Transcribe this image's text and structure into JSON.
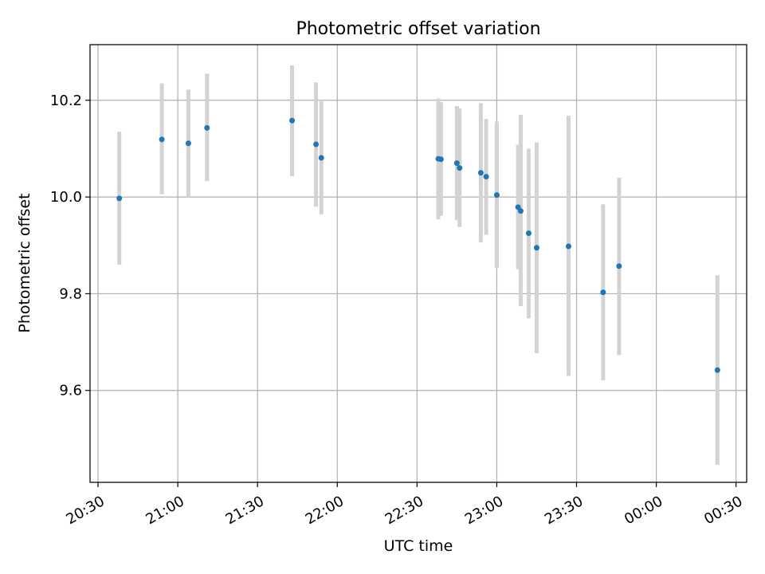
{
  "chart_data": {
    "type": "scatter",
    "title": "Photometric offset variation",
    "xlabel": "UTC time",
    "ylabel": "Photometric offset",
    "grid": true,
    "xlim": [
      "20:27",
      "00:34"
    ],
    "ylim": [
      9.41,
      10.315
    ],
    "x_ticks": [
      "20:30",
      "21:00",
      "21:30",
      "22:00",
      "22:30",
      "23:00",
      "23:30",
      "00:00",
      "00:30"
    ],
    "y_ticks": [
      "9.6",
      "9.8",
      "10.0",
      "10.2"
    ],
    "colors": {
      "point": "#1f77b4",
      "errorbar": "#d3d3d3",
      "grid": "#b0b0b0"
    },
    "points": [
      {
        "x": "20:38",
        "y": 9.997,
        "ylow": 9.86,
        "yhigh": 10.135
      },
      {
        "x": "20:54",
        "y": 10.119,
        "ylow": 10.006,
        "yhigh": 10.235
      },
      {
        "x": "21:04",
        "y": 10.111,
        "ylow": 10.0,
        "yhigh": 10.222
      },
      {
        "x": "21:11",
        "y": 10.143,
        "ylow": 10.033,
        "yhigh": 10.255
      },
      {
        "x": "21:43",
        "y": 10.158,
        "ylow": 10.043,
        "yhigh": 10.272
      },
      {
        "x": "21:52",
        "y": 10.109,
        "ylow": 9.98,
        "yhigh": 10.237
      },
      {
        "x": "21:54",
        "y": 10.081,
        "ylow": 9.964,
        "yhigh": 10.198
      },
      {
        "x": "22:38",
        "y": 10.079,
        "ylow": 9.954,
        "yhigh": 10.204
      },
      {
        "x": "22:39",
        "y": 10.078,
        "ylow": 9.961,
        "yhigh": 10.196
      },
      {
        "x": "22:45",
        "y": 10.07,
        "ylow": 9.952,
        "yhigh": 10.188
      },
      {
        "x": "22:46",
        "y": 10.06,
        "ylow": 9.938,
        "yhigh": 10.183
      },
      {
        "x": "22:54",
        "y": 10.05,
        "ylow": 9.906,
        "yhigh": 10.194
      },
      {
        "x": "22:56",
        "y": 10.042,
        "ylow": 9.922,
        "yhigh": 10.161
      },
      {
        "x": "23:00",
        "y": 10.004,
        "ylow": 9.853,
        "yhigh": 10.156
      },
      {
        "x": "23:08",
        "y": 9.979,
        "ylow": 9.851,
        "yhigh": 10.108
      },
      {
        "x": "23:09",
        "y": 9.971,
        "ylow": 9.774,
        "yhigh": 10.17
      },
      {
        "x": "23:12",
        "y": 9.925,
        "ylow": 9.749,
        "yhigh": 10.1
      },
      {
        "x": "23:15",
        "y": 9.895,
        "ylow": 9.677,
        "yhigh": 10.113
      },
      {
        "x": "23:27",
        "y": 9.898,
        "ylow": 9.63,
        "yhigh": 10.168
      },
      {
        "x": "23:40",
        "y": 9.803,
        "ylow": 9.621,
        "yhigh": 9.985
      },
      {
        "x": "23:46",
        "y": 9.857,
        "ylow": 9.673,
        "yhigh": 10.04
      },
      {
        "x": "00:23",
        "y": 9.642,
        "ylow": 9.446,
        "yhigh": 9.838
      }
    ]
  }
}
